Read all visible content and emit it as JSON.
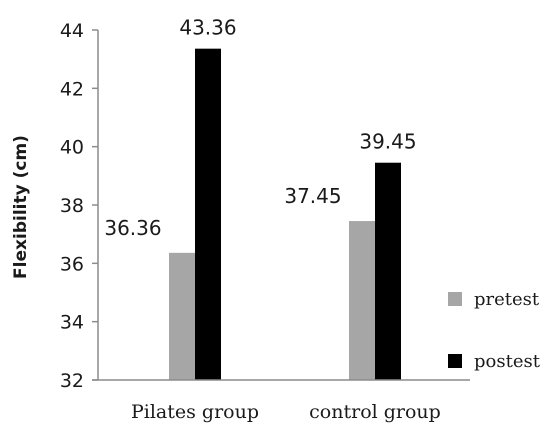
{
  "chart_data": {
    "type": "bar",
    "title": "",
    "xlabel": "",
    "ylabel": "Flexibility (cm)",
    "categories": [
      "Pilates group",
      "control group"
    ],
    "series": [
      {
        "name": "pretest",
        "values": [
          36.36,
          37.45
        ],
        "labels": [
          "36.36",
          "37.45"
        ],
        "color": "#a6a6a6"
      },
      {
        "name": "postest",
        "values": [
          43.36,
          39.45
        ],
        "labels": [
          "43.36",
          "39.45"
        ],
        "color": "#000000"
      }
    ],
    "ylim": [
      32,
      44
    ],
    "yticks": [
      "32",
      "34",
      "36",
      "38",
      "40",
      "42",
      "44"
    ],
    "grid": false,
    "legend": "right"
  }
}
